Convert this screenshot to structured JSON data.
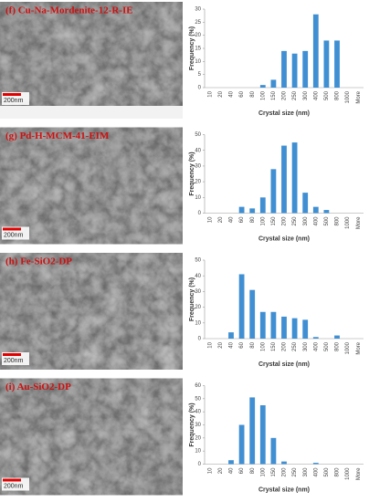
{
  "panels": [
    {
      "label": "(f) Cu-Na-Mordenite-12-R-IE",
      "scale_bar": "200nm"
    },
    {
      "label": "(g) Pd-H-MCM-41-EIM",
      "scale_bar": "200nm"
    },
    {
      "label": "(h) Fe-SiO2-DP",
      "scale_bar": "200nm"
    },
    {
      "label": "(i) Au-SiO2-DP",
      "scale_bar": "200nm"
    }
  ],
  "chart_data": [
    {
      "type": "bar",
      "x_label": "Crystal size (nm)",
      "y_label": "Frequency (%)",
      "color": "#3f8fd2",
      "categories": [
        "10",
        "20",
        "40",
        "60",
        "80",
        "100",
        "150",
        "200",
        "250",
        "300",
        "400",
        "500",
        "800",
        "1000",
        "More"
      ],
      "values": [
        0,
        0,
        0,
        0,
        0,
        1,
        3,
        14,
        13,
        14,
        28,
        18,
        18,
        0,
        0
      ],
      "ylim": [
        0,
        30
      ],
      "yticks": [
        0,
        5,
        10,
        15,
        20,
        25,
        30
      ]
    },
    {
      "type": "bar",
      "x_label": "Crystal size (nm)",
      "y_label": "Frequency (%)",
      "color": "#3f8fd2",
      "categories": [
        "10",
        "20",
        "40",
        "60",
        "80",
        "100",
        "150",
        "200",
        "250",
        "300",
        "400",
        "500",
        "800",
        "1000",
        "More"
      ],
      "values": [
        0,
        0,
        0,
        4,
        3,
        10,
        28,
        43,
        45,
        13,
        4,
        2,
        0,
        0,
        0
      ],
      "ylim": [
        0,
        50
      ],
      "yticks": [
        0,
        10,
        20,
        30,
        40,
        50
      ]
    },
    {
      "type": "bar",
      "x_label": "Crystal size (nm)",
      "y_label": "Frequency (%)",
      "color": "#3f8fd2",
      "categories": [
        "10",
        "20",
        "40",
        "60",
        "80",
        "100",
        "150",
        "200",
        "250",
        "300",
        "400",
        "500",
        "800",
        "1000",
        "More"
      ],
      "values": [
        0,
        0,
        4,
        41,
        31,
        17,
        17,
        14,
        13,
        12,
        1,
        0,
        2,
        0,
        0
      ],
      "ylim": [
        0,
        50
      ],
      "yticks": [
        0,
        10,
        20,
        30,
        40,
        50
      ]
    },
    {
      "type": "bar",
      "x_label": "Crystal size (nm)",
      "y_label": "Frequency (%)",
      "color": "#3f8fd2",
      "categories": [
        "10",
        "20",
        "40",
        "60",
        "80",
        "100",
        "150",
        "200",
        "250",
        "300",
        "400",
        "500",
        "800",
        "1000",
        "More"
      ],
      "values": [
        0,
        0,
        3,
        30,
        51,
        45,
        20,
        2,
        0,
        0,
        1,
        0,
        0,
        0,
        0
      ],
      "ylim": [
        0,
        60
      ],
      "yticks": [
        0,
        10,
        20,
        30,
        40,
        50,
        60
      ]
    }
  ]
}
